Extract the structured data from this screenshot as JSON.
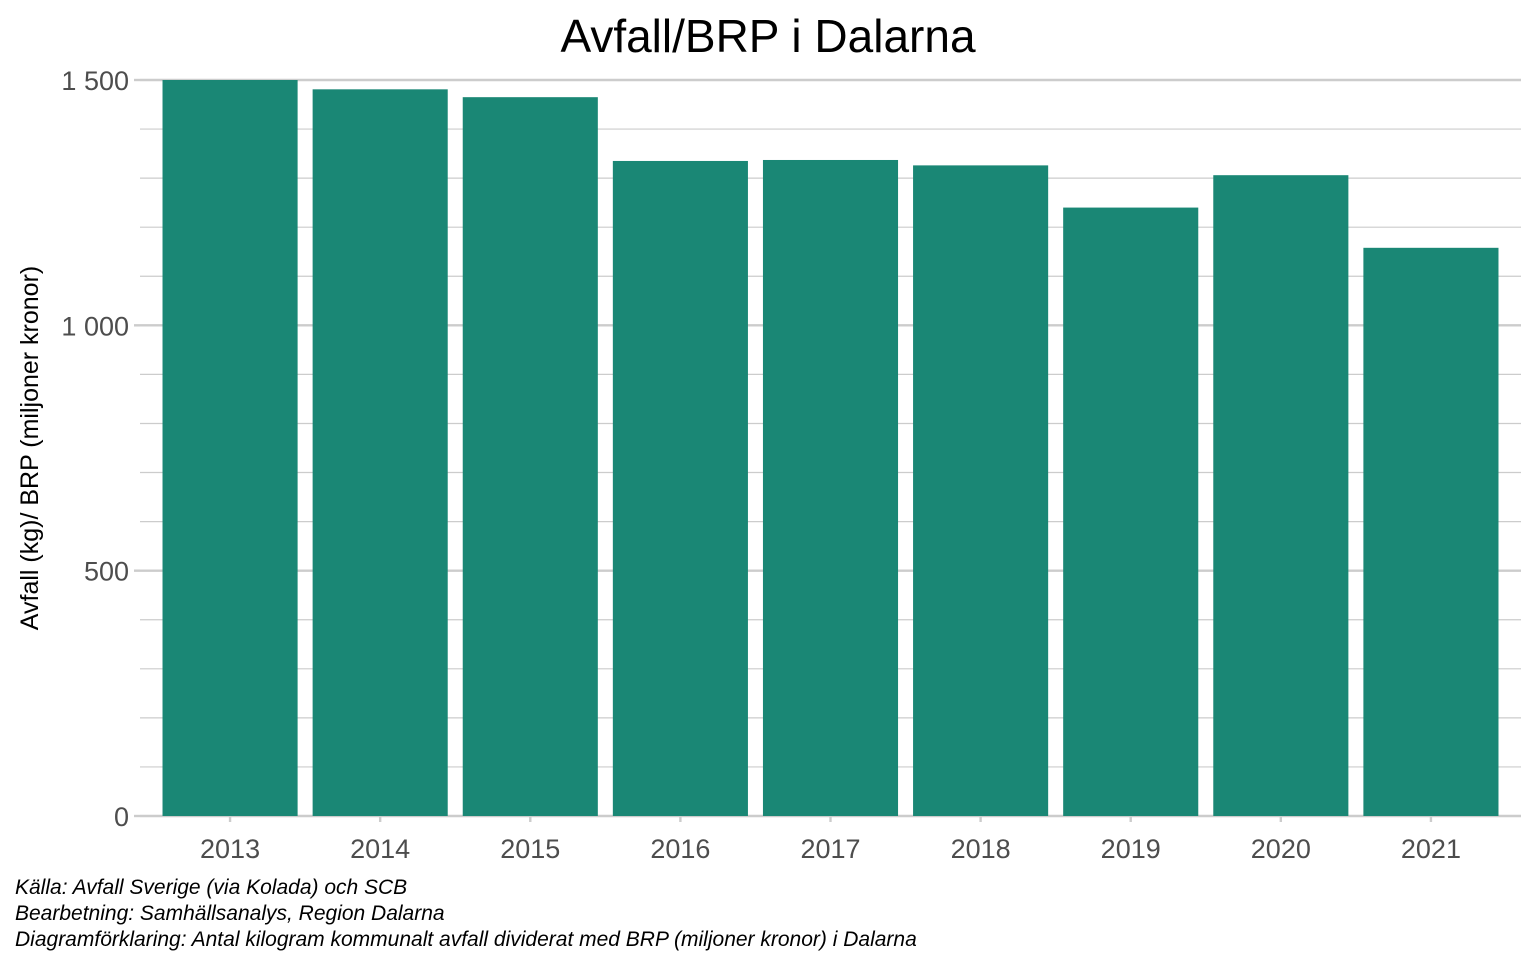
{
  "chart_data": {
    "type": "bar",
    "title": "Avfall/BRP i Dalarna",
    "ylabel": "Avfall (kg)/ BRP (miljoner kronor)",
    "xlabel": "",
    "categories": [
      "2013",
      "2014",
      "2015",
      "2016",
      "2017",
      "2018",
      "2019",
      "2020",
      "2021"
    ],
    "values": [
      1500,
      1481,
      1465,
      1335,
      1337,
      1326,
      1240,
      1306,
      1158
    ],
    "ylim": [
      0,
      1500
    ],
    "yticks": [
      0,
      500,
      1000,
      1500
    ],
    "ytick_labels": [
      "0",
      "500",
      "1 000",
      "1 500"
    ],
    "grid": true,
    "legend": "none",
    "colors": {
      "bar": "#1a8775"
    }
  },
  "captions": {
    "source": "Källa: Avfall Sverige (via Kolada) och SCB",
    "processing": "Bearbetning: Samhällsanalys, Region Dalarna",
    "explanation": "Diagramförklaring: Antal kilogram kommunalt avfall dividerat med BRP (miljoner kronor) i Dalarna"
  }
}
